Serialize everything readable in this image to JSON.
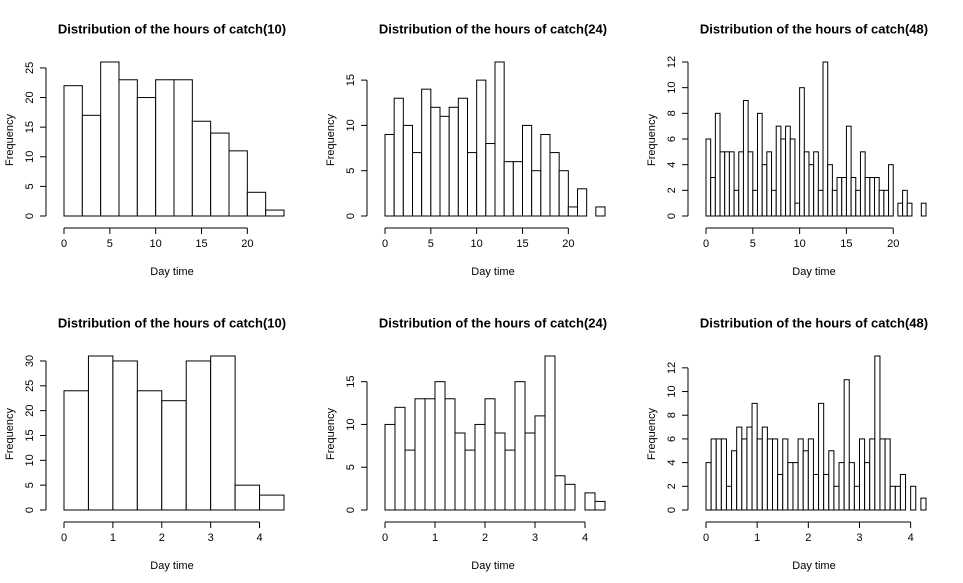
{
  "chart_data": [
    {
      "type": "histogram",
      "title": "Distribution of the hours of catch(10)",
      "xlabel": "Day time",
      "ylabel": "Frequency",
      "bins": [
        0,
        2,
        4,
        6,
        8,
        10,
        12,
        14,
        16,
        18,
        20,
        22,
        24
      ],
      "counts": [
        22,
        17,
        26,
        23,
        20,
        23,
        23,
        16,
        14,
        11,
        4,
        1
      ],
      "xlim": [
        0,
        24
      ],
      "ylim": [
        0,
        26
      ],
      "xticks": [
        0,
        5,
        10,
        15,
        20
      ],
      "yticks": [
        0,
        5,
        10,
        15,
        20,
        25
      ],
      "color": "#ffffff"
    },
    {
      "type": "histogram",
      "title": "Distribution of the hours of catch(24)",
      "xlabel": "Day time",
      "ylabel": "Frequency",
      "bins": [
        0,
        1,
        2,
        3,
        4,
        5,
        6,
        7,
        8,
        9,
        10,
        11,
        12,
        13,
        14,
        15,
        16,
        17,
        18,
        19,
        20,
        21,
        22,
        23,
        24
      ],
      "counts": [
        9,
        13,
        10,
        7,
        14,
        12,
        11,
        12,
        13,
        7,
        15,
        8,
        17,
        6,
        6,
        10,
        5,
        9,
        7,
        5,
        1,
        3,
        0,
        1
      ],
      "xlim": [
        0,
        24
      ],
      "ylim": [
        0,
        17
      ],
      "xticks": [
        0,
        5,
        10,
        15,
        20
      ],
      "yticks": [
        0,
        5,
        10,
        15
      ],
      "color": "#ffffff"
    },
    {
      "type": "histogram",
      "title": "Distribution of the hours of catch(48)",
      "xlabel": "Day time",
      "ylabel": "Frequency",
      "bins": [
        0,
        0.5,
        1,
        1.5,
        2,
        2.5,
        3,
        3.5,
        4,
        4.5,
        5,
        5.5,
        6,
        6.5,
        7,
        7.5,
        8,
        8.5,
        9,
        9.5,
        10,
        10.5,
        11,
        11.5,
        12,
        12.5,
        13,
        13.5,
        14,
        14.5,
        15,
        15.5,
        16,
        16.5,
        17,
        17.5,
        18,
        18.5,
        19,
        19.5,
        20,
        20.5,
        21,
        21.5,
        22,
        22.5,
        23,
        23.5
      ],
      "counts": [
        6,
        3,
        8,
        5,
        5,
        5,
        2,
        5,
        9,
        5,
        2,
        8,
        4,
        5,
        2,
        7,
        6,
        7,
        6,
        1,
        10,
        5,
        4,
        5,
        2,
        12,
        4,
        2,
        3,
        3,
        7,
        3,
        2,
        5,
        3,
        3,
        3,
        2,
        2,
        4,
        0,
        1,
        2,
        1,
        0,
        0,
        1
      ],
      "xlim": [
        0,
        23.5
      ],
      "ylim": [
        0,
        12
      ],
      "xticks": [
        0,
        5,
        10,
        15,
        20
      ],
      "yticks": [
        0,
        2,
        4,
        6,
        8,
        10,
        12
      ],
      "color": "#ffffff"
    },
    {
      "type": "histogram",
      "title": "Distribution of the hours of catch(10)",
      "xlabel": "Day time",
      "ylabel": "Frequency",
      "bins": [
        0,
        0.5,
        1,
        1.5,
        2,
        2.5,
        3,
        3.5,
        4,
        4.5
      ],
      "counts": [
        24,
        31,
        30,
        24,
        22,
        30,
        31,
        5,
        3
      ],
      "xlim": [
        0,
        4.5
      ],
      "ylim": [
        0,
        31
      ],
      "xticks": [
        0,
        1,
        2,
        3,
        4
      ],
      "yticks": [
        0,
        5,
        10,
        15,
        20,
        25,
        30
      ],
      "color": "#ffffff"
    },
    {
      "type": "histogram",
      "title": "Distribution of the hours of catch(24)",
      "xlabel": "Day time",
      "ylabel": "Frequency",
      "bins": [
        0,
        0.2,
        0.4,
        0.6,
        0.8,
        1,
        1.2,
        1.4,
        1.6,
        1.8,
        2,
        2.2,
        2.4,
        2.6,
        2.8,
        3,
        3.2,
        3.4,
        3.6,
        3.8,
        4,
        4.2,
        4.4
      ],
      "counts": [
        10,
        12,
        7,
        13,
        13,
        15,
        13,
        9,
        7,
        10,
        13,
        9,
        7,
        15,
        9,
        11,
        18,
        4,
        3,
        0,
        2,
        1
      ],
      "xlim": [
        0,
        4.4
      ],
      "ylim": [
        0,
        18
      ],
      "xticks": [
        0,
        1,
        2,
        3,
        4
      ],
      "yticks": [
        0,
        5,
        10,
        15
      ],
      "color": "#ffffff"
    },
    {
      "type": "histogram",
      "title": "Distribution of the hours of catch(48)",
      "xlabel": "Day time",
      "ylabel": "Frequency",
      "bins": [
        0,
        0.1,
        0.2,
        0.3,
        0.4,
        0.5,
        0.6,
        0.7,
        0.8,
        0.9,
        1,
        1.1,
        1.2,
        1.3,
        1.4,
        1.5,
        1.6,
        1.7,
        1.8,
        1.9,
        2,
        2.1,
        2.2,
        2.3,
        2.4,
        2.5,
        2.6,
        2.7,
        2.8,
        2.9,
        3,
        3.1,
        3.2,
        3.3,
        3.4,
        3.5,
        3.6,
        3.7,
        3.8,
        3.9,
        4,
        4.1,
        4.2,
        4.3
      ],
      "counts": [
        4,
        6,
        6,
        6,
        2,
        5,
        7,
        6,
        7,
        9,
        6,
        7,
        6,
        6,
        3,
        6,
        4,
        4,
        6,
        5,
        6,
        3,
        9,
        3,
        5,
        2,
        4,
        11,
        4,
        2,
        6,
        4,
        6,
        13,
        6,
        6,
        2,
        2,
        3,
        0,
        2,
        0,
        1
      ],
      "xlim": [
        0,
        4.3
      ],
      "ylim": [
        0,
        13
      ],
      "xticks": [
        0,
        1,
        2,
        3,
        4
      ],
      "yticks": [
        0,
        2,
        4,
        6,
        8,
        10,
        12
      ],
      "color": "#ffffff"
    }
  ]
}
